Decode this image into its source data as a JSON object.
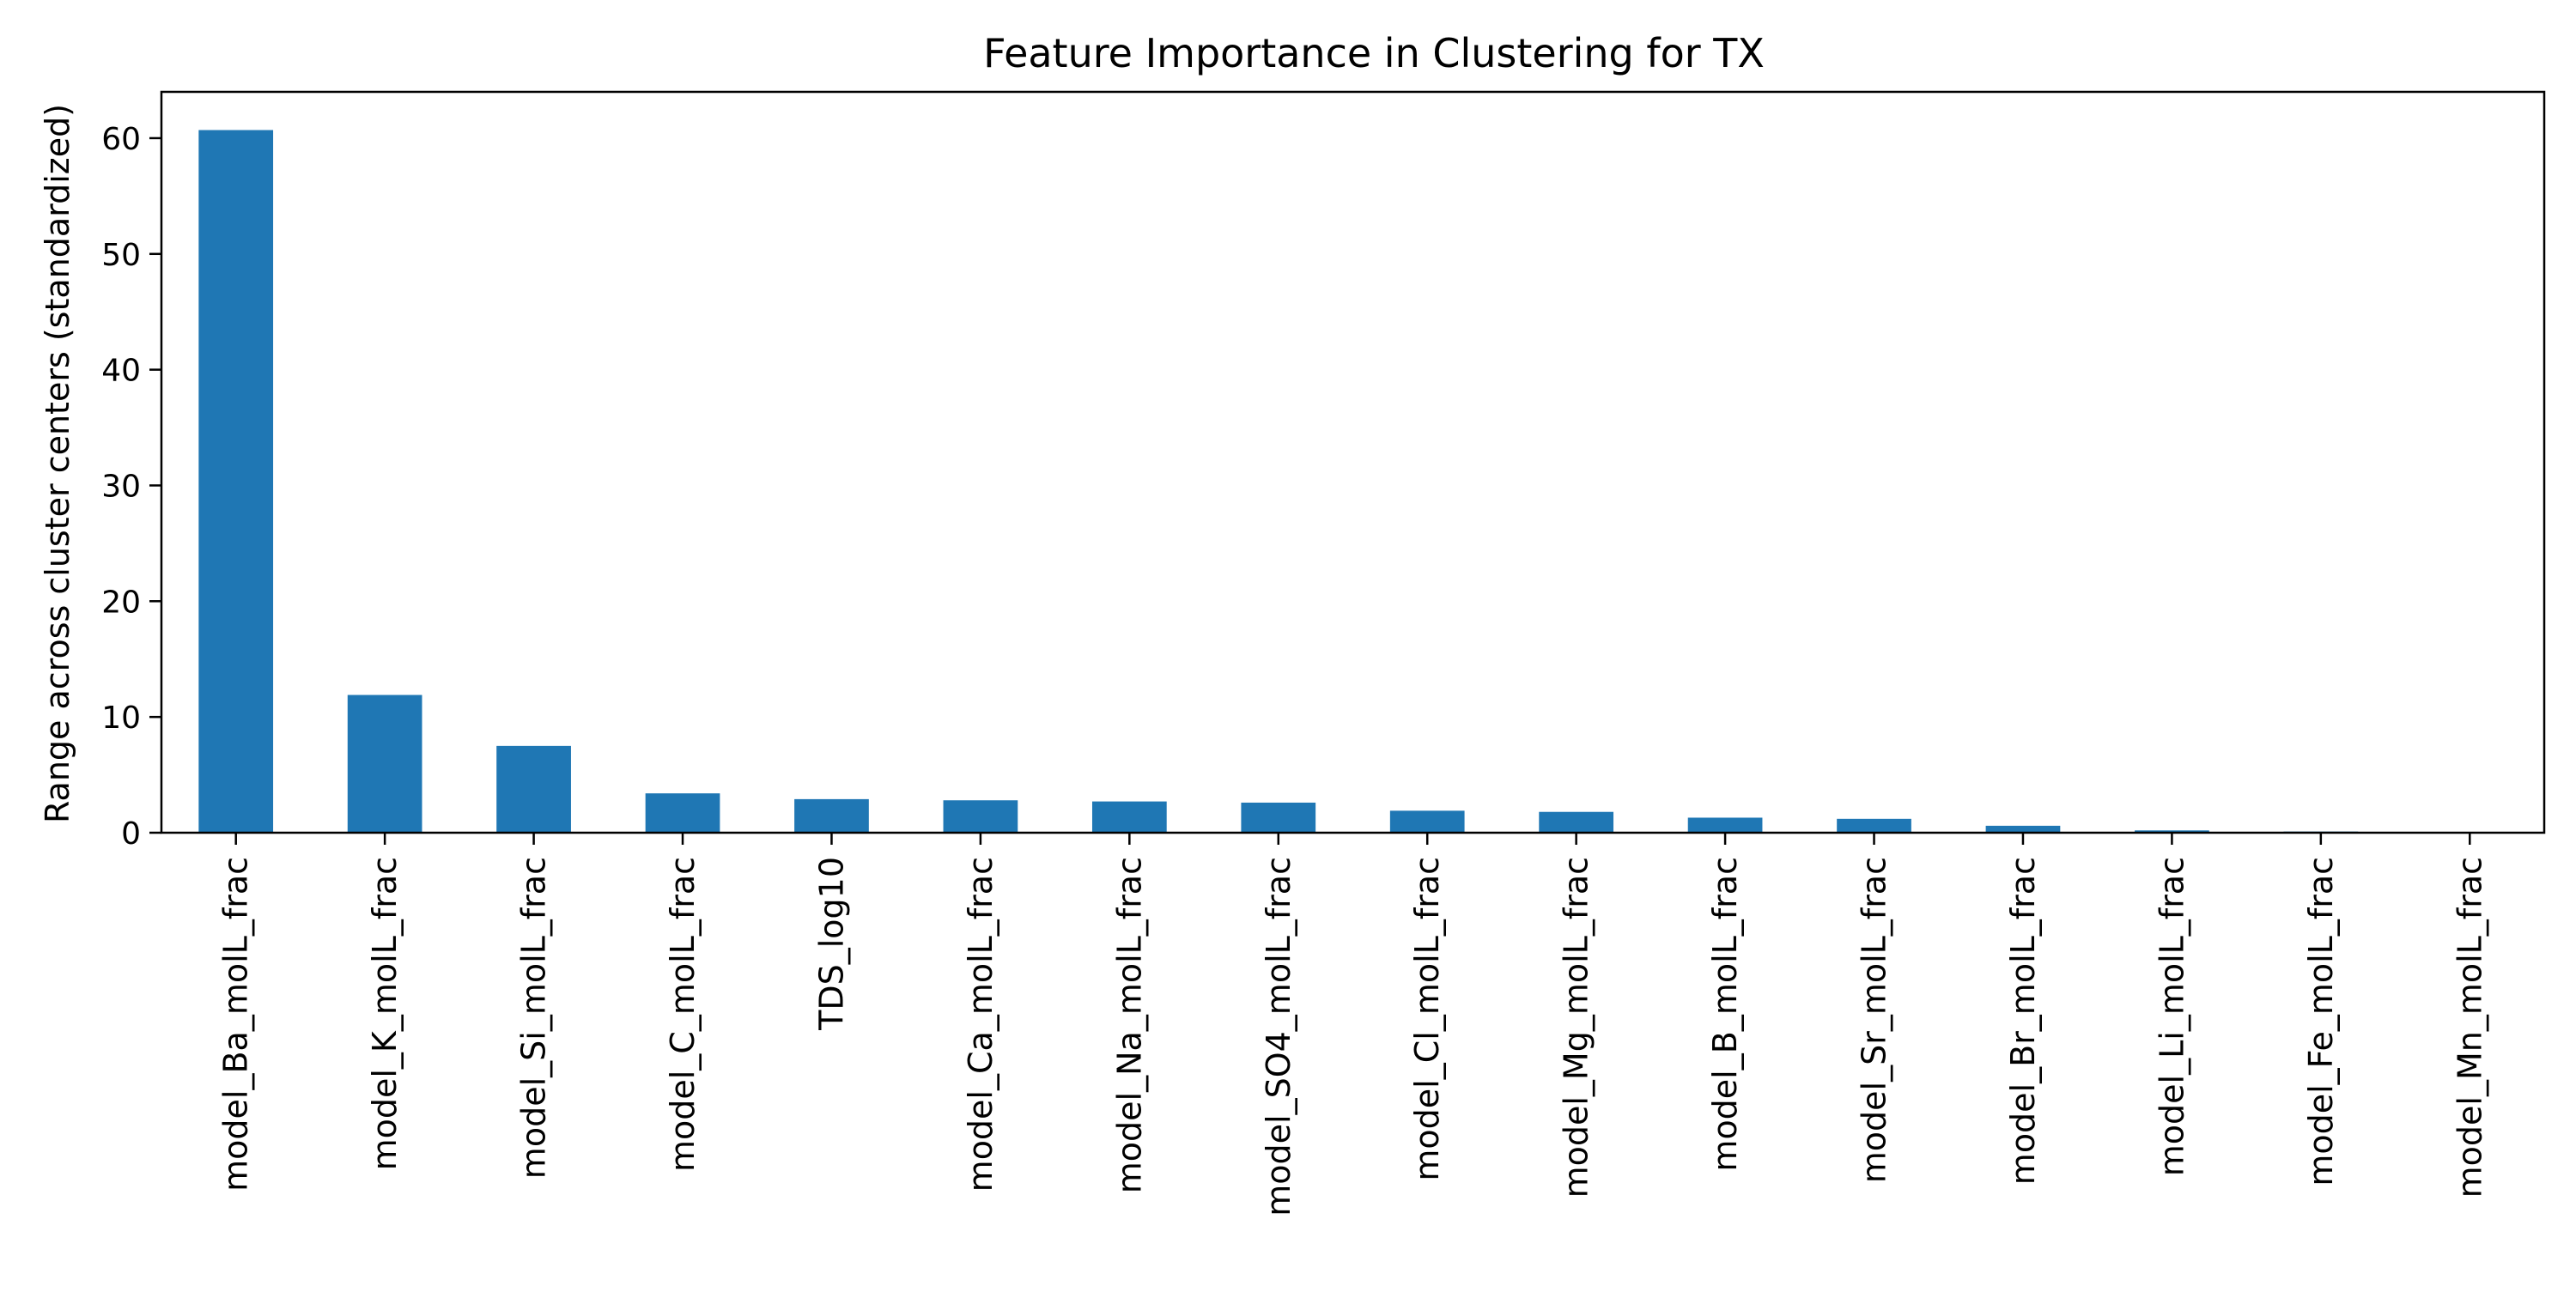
{
  "chart_data": {
    "type": "bar",
    "title": "Feature Importance in Clustering for TX",
    "xlabel": "",
    "ylabel": "Range across cluster centers (standardized)",
    "ylim": [
      0,
      64
    ],
    "yticks": [
      0,
      10,
      20,
      30,
      40,
      50,
      60
    ],
    "grid": false,
    "legend": "none",
    "bar_color": "#1f77b4",
    "categories": [
      "model_Ba_molL_frac",
      "model_K_molL_frac",
      "model_Si_molL_frac",
      "model_C_molL_frac",
      "TDS_log10",
      "model_Ca_molL_frac",
      "model_Na_molL_frac",
      "model_SO4_molL_frac",
      "model_Cl_molL_frac",
      "model_Mg_molL_frac",
      "model_B_molL_frac",
      "model_Sr_molL_frac",
      "model_Br_molL_frac",
      "model_Li_molL_frac",
      "model_Fe_molL_frac",
      "model_Mn_molL_frac"
    ],
    "values": [
      60.7,
      11.9,
      7.5,
      3.4,
      2.9,
      2.8,
      2.7,
      2.6,
      1.9,
      1.8,
      1.3,
      1.2,
      0.6,
      0.2,
      0.1,
      0.02
    ]
  }
}
